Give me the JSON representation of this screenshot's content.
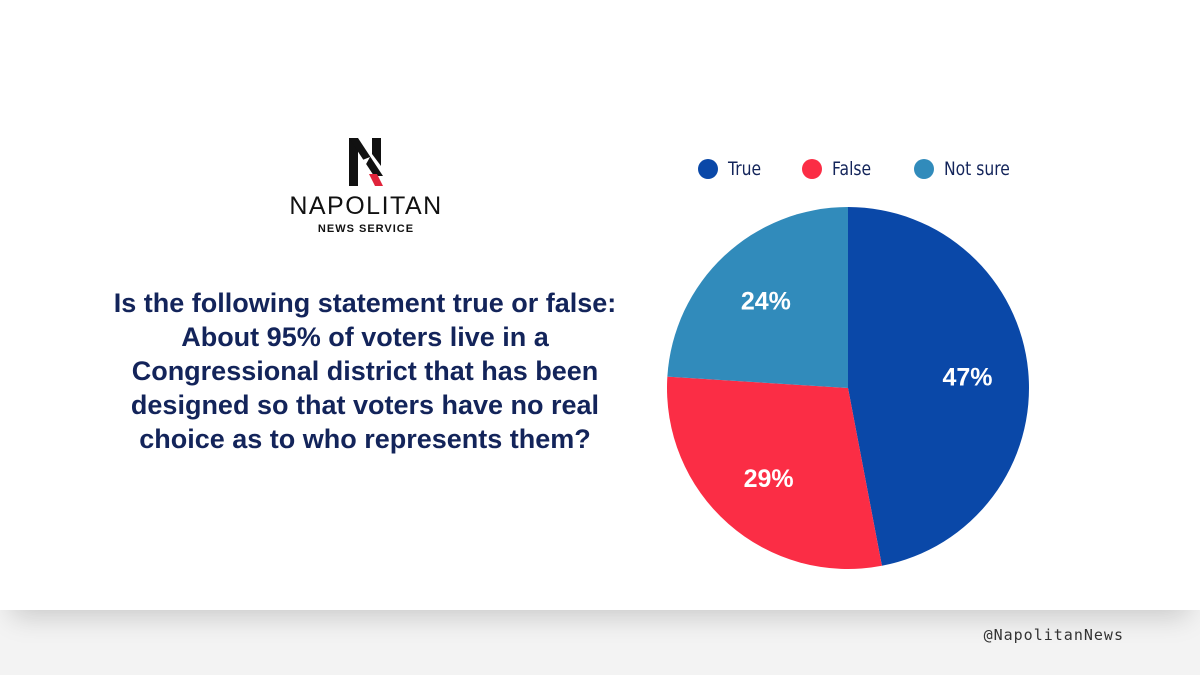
{
  "brand": {
    "name": "NAPOLITAN",
    "subtitle": "NEWS SERVICE",
    "handle": "@NapolitanNews"
  },
  "question": "Is the following statement true or false: About 95% of voters live in a Congressional district that has been designed so that voters have no real choice as to who represents them?",
  "chart_data": {
    "type": "pie",
    "title": "",
    "categories": [
      "True",
      "False",
      "Not sure"
    ],
    "values": [
      47,
      29,
      24
    ],
    "labels": [
      "47%",
      "29%",
      "24%"
    ],
    "colors": [
      "#0a48a8",
      "#fb2d45",
      "#318bbb"
    ],
    "legend_position": "top"
  }
}
